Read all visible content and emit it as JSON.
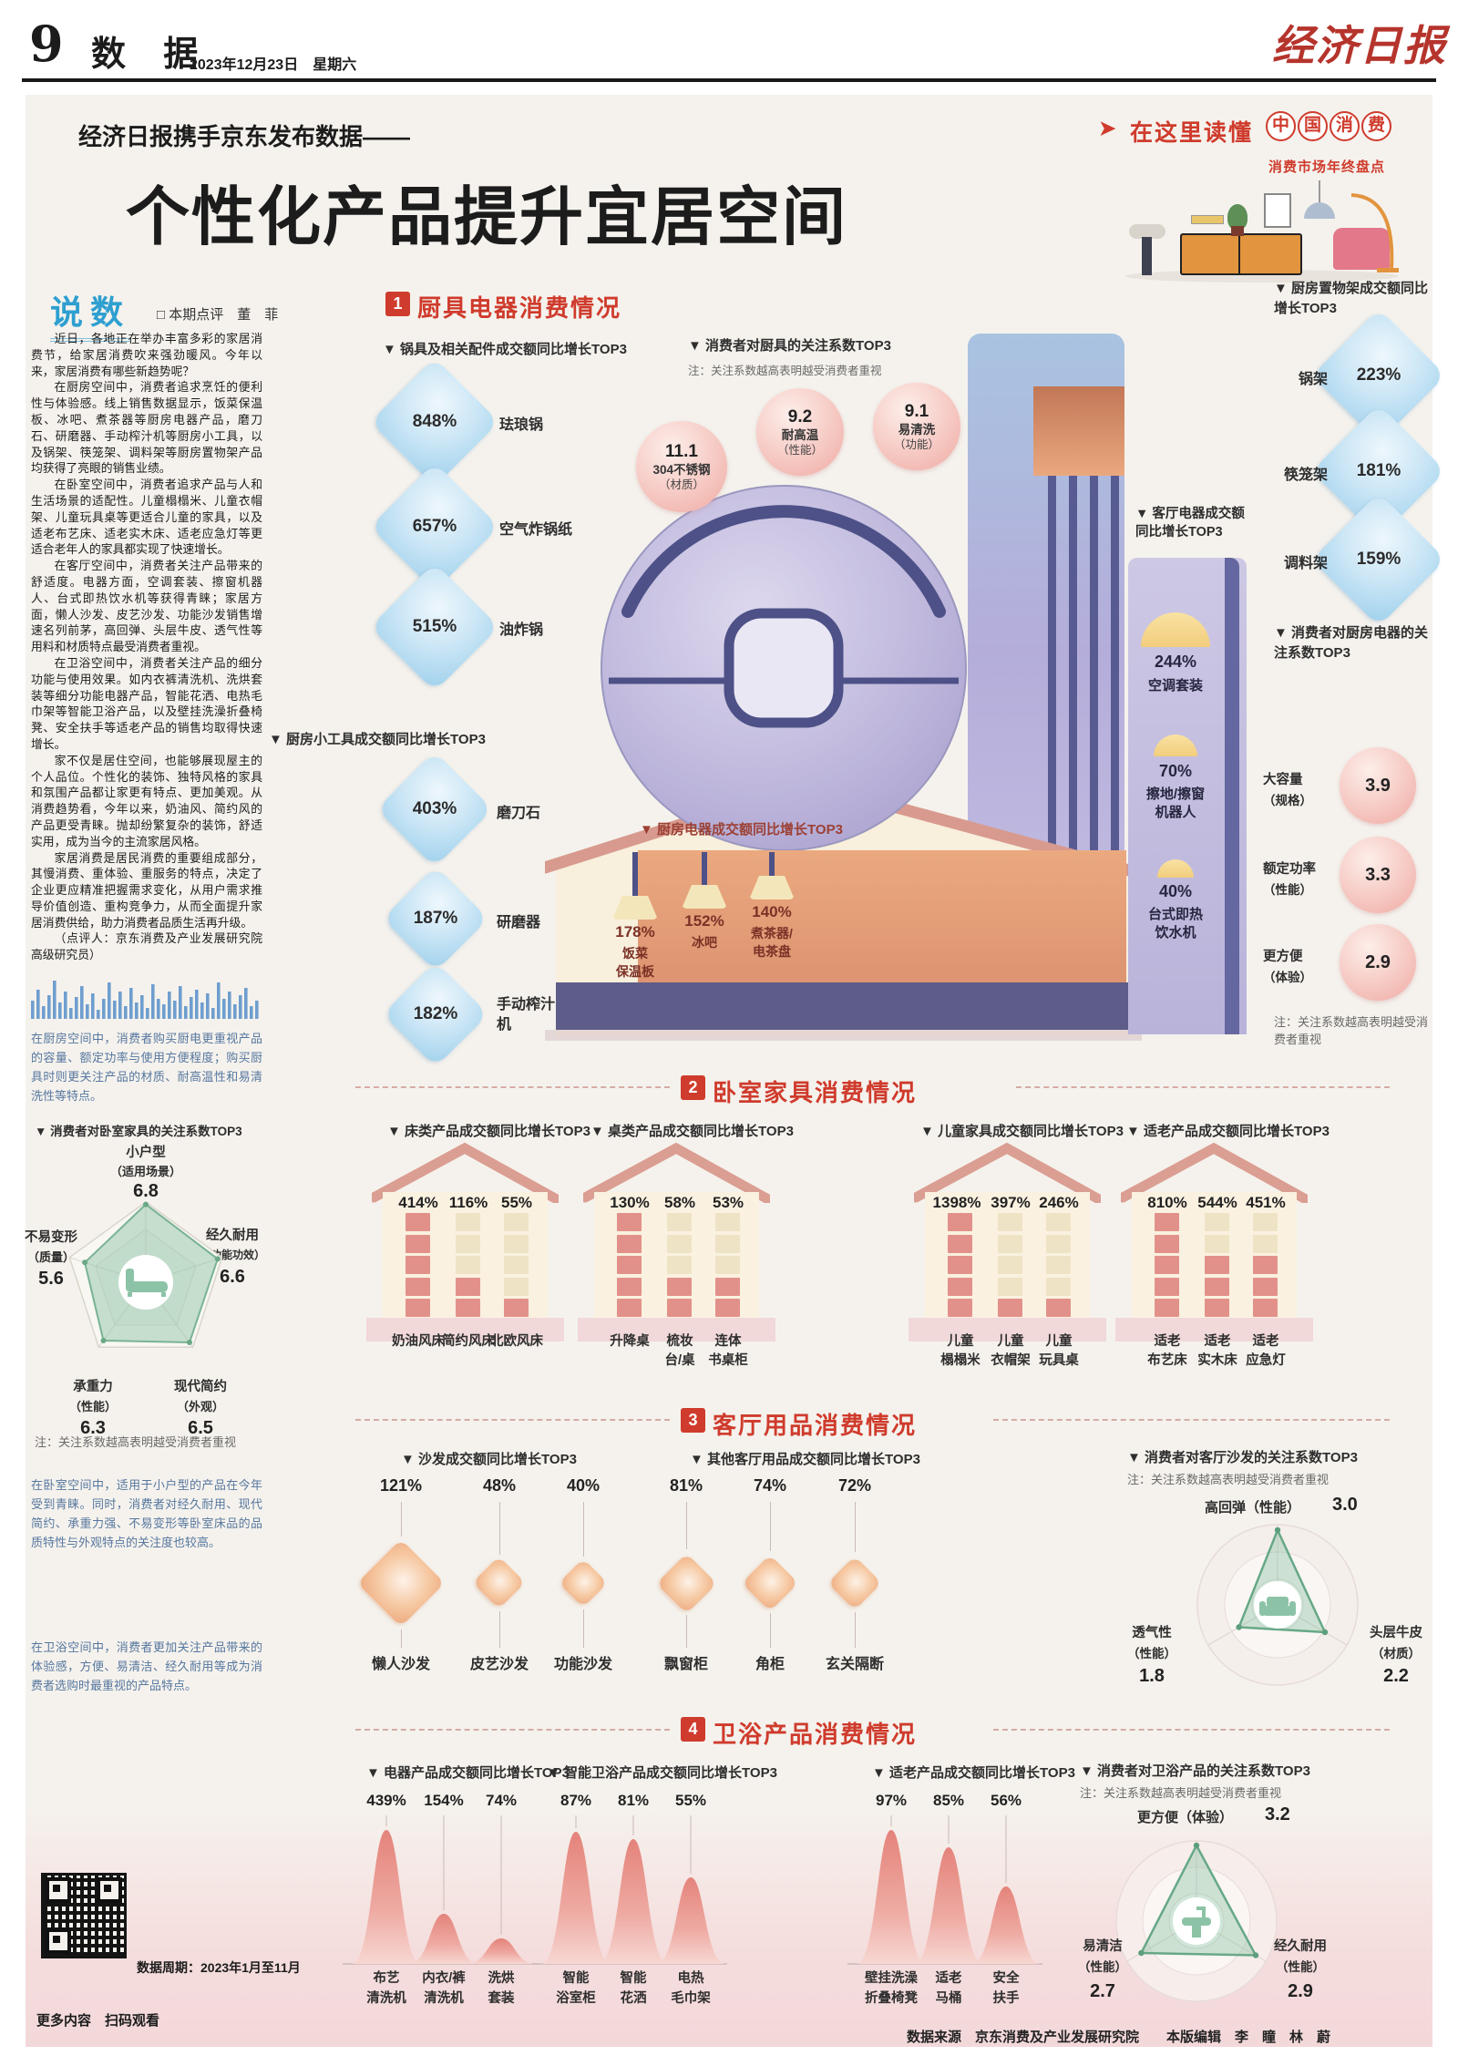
{
  "page": {
    "number": "9",
    "section": "数 据",
    "date": "2023年12月23日　星期六",
    "masthead": "经济日报",
    "kicker": "经济日报携手京东发布数据——",
    "headline": "个性化产品提升宜居空间",
    "badge_arrow": "➤",
    "badge": "在这里读懂",
    "badge_circles": [
      "中",
      "国",
      "消",
      "费"
    ],
    "badge_sub": "消费市场年终盘点",
    "footer": "数据来源　京东消费及产业发展研究院　　本版编辑　李　瞳　林　蔚"
  },
  "commentary": {
    "title": "说数",
    "byline": "□ 本期点评　董　菲",
    "paragraphs": [
      "近日，各地正在举办丰富多彩的家居消费节，给家居消费吹来强劲暖风。今年以来，家居消费有哪些新趋势呢？",
      "在厨房空间中，消费者追求烹饪的便利性与体验感。线上销售数据显示，饭菜保温板、冰吧、煮茶器等厨房电器产品，磨刀石、研磨器、手动榨汁机等厨房小工具，以及锅架、筷笼架、调料架等厨房置物架产品均获得了亮眼的销售业绩。",
      "在卧室空间中，消费者追求产品与人和生活场景的适配性。儿童榻榻米、儿童衣帽架、儿童玩具桌等更适合儿童的家具，以及适老布艺床、适老实木床、适老应急灯等更适合老年人的家具都实现了快速增长。",
      "在客厅空间中，消费者关注产品带来的舒适度。电器方面，空调套装、擦窗机器人、台式即热饮水机等获得青睐；家居方面，懒人沙发、皮艺沙发、功能沙发销售增速名列前茅，高回弹、头层牛皮、透气性等用料和材质特点最受消费者重视。",
      "在卫浴空间中，消费者关注产品的细分功能与使用效果。如内衣裤清洗机、洗烘套装等细分功能电器产品，智能花洒、电热毛巾架等智能卫浴产品，以及壁挂洗澡折叠椅凳、安全扶手等适老产品的销售均取得快速增长。",
      "家不仅是居住空间，也能够展现屋主的个人品位。个性化的装饰、独特风格的家具和氛围产品都让家更有特点、更加美观。从消费趋势看，今年以来，奶油风、简约风的产品更受青睐。抛却纷繁复杂的装饰，舒适实用，成为当今的主流家居风格。",
      "家居消费是居民消费的重要组成部分，其慢消费、重体验、重服务的特点，决定了企业更应精准把握需求变化，从用户需求推导价值创造、重构竞争力，从而全面提升家居消费供给，助力消费者品质生活再升级。",
      "（点评人：京东消费及产业发展研究院高级研究员）"
    ],
    "highlight1": "在厨房空间中，消费者购买厨电更重视产品的容量、额定功率与使用方便程度；购买厨具时则更关注产品的材质、耐高温性和易清洗性等特点。",
    "highlight2": "在卧室空间中，适用于小户型的产品在今年受到青睐。同时，消费者对经久耐用、现代简约、承重力强、不易变形等卧室床品的品质特性与外观特点的关注度也较高。",
    "highlight3": "在卫浴空间中，消费者更加关注产品带来的体验感，方便、易清洁、经久耐用等成为消费者选购时最重视的产品特点。",
    "qr_caption": "更多内容　扫码观看",
    "data_period": "数据周期：2023年1月至11月"
  },
  "s1": {
    "num": "1",
    "title": "厨具电器消费情况",
    "pots": {
      "label": "▼ 锅具及相关配件成交额同比增长TOP3",
      "items": [
        {
          "value": "848%",
          "name": "珐琅锅"
        },
        {
          "value": "657%",
          "name": "空气炸锅纸"
        },
        {
          "value": "515%",
          "name": "油炸锅"
        }
      ]
    },
    "cookware_focus": {
      "label": "▼ 消费者对厨具的关注系数TOP3",
      "note": "注：关注系数越高表明越受消费者重视",
      "items": [
        {
          "value": "11.1",
          "name": "304不锈钢",
          "attr": "（材质）"
        },
        {
          "value": "9.2",
          "name": "耐高温",
          "attr": "（性能）"
        },
        {
          "value": "9.1",
          "name": "易清洗",
          "attr": "（功能）"
        }
      ]
    },
    "tools": {
      "label": "▼ 厨房小工具成交额同比增长TOP3",
      "items": [
        {
          "value": "403%",
          "name": "磨刀石"
        },
        {
          "value": "187%",
          "name": "研磨器"
        },
        {
          "value": "182%",
          "name": "手动榨汁机"
        }
      ]
    },
    "house": {
      "label": "▼ 厨房电器成交额同比增长TOP3",
      "items": [
        {
          "value": "178%",
          "name1": "饭菜",
          "name2": "保温板"
        },
        {
          "value": "152%",
          "name1": "冰吧",
          "name2": ""
        },
        {
          "value": "140%",
          "name1": "煮茶器/",
          "name2": "电茶盘"
        }
      ]
    },
    "living": {
      "label": "▼ 客厅电器成交额同比增长TOP3",
      "items": [
        {
          "value": "244%",
          "name1": "空调套装",
          "name2": ""
        },
        {
          "value": "70%",
          "name1": "擦地/擦窗",
          "name2": "机器人"
        },
        {
          "value": "40%",
          "name1": "台式即热",
          "name2": "饮水机"
        }
      ]
    },
    "racks": {
      "label": "▼ 厨房置物架成交额同比增长TOP3",
      "items": [
        {
          "name": "锅架",
          "value": "223%"
        },
        {
          "name": "筷笼架",
          "value": "181%"
        },
        {
          "name": "调料架",
          "value": "159%"
        }
      ]
    },
    "kitchen_focus": {
      "label": "▼ 消费者对厨房电器的关注系数TOP3",
      "note": "注：关注系数越高表明越受消费者重视",
      "items": [
        {
          "name": "大容量",
          "attr": "（规格）",
          "value": "3.9"
        },
        {
          "name": "额定功率",
          "attr": "（性能）",
          "value": "3.3"
        },
        {
          "name": "更方便",
          "attr": "（体验）",
          "value": "2.9"
        }
      ]
    }
  },
  "s2": {
    "num": "2",
    "title": "卧室家具消费情况",
    "groups": [
      {
        "label": "▼ 床类产品成交额同比增长TOP3",
        "items": [
          {
            "value": "414%",
            "name1": "奶油风床",
            "name2": "",
            "fill": "5"
          },
          {
            "value": "116%",
            "name1": "简约风床",
            "name2": "",
            "fill": "2"
          },
          {
            "value": "55%",
            "name1": "北欧风床",
            "name2": "",
            "fill": "1"
          }
        ]
      },
      {
        "label": "▼ 桌类产品成交额同比增长TOP3",
        "items": [
          {
            "value": "130%",
            "name1": "升降桌",
            "name2": "",
            "fill": "5"
          },
          {
            "value": "58%",
            "name1": "梳妆",
            "name2": "台/桌",
            "fill": "2"
          },
          {
            "value": "53%",
            "name1": "连体",
            "name2": "书桌柜",
            "fill": "2"
          }
        ]
      },
      {
        "label": "▼ 儿童家具成交额同比增长TOP3",
        "items": [
          {
            "value": "1398%",
            "name1": "儿童",
            "name2": "榻榻米",
            "fill": "5"
          },
          {
            "value": "397%",
            "name1": "儿童",
            "name2": "衣帽架",
            "fill": "1"
          },
          {
            "value": "246%",
            "name1": "儿童",
            "name2": "玩具桌",
            "fill": "1"
          }
        ]
      },
      {
        "label": "▼ 适老产品成交额同比增长TOP3",
        "items": [
          {
            "value": "810%",
            "name1": "适老",
            "name2": "布艺床",
            "fill": "5"
          },
          {
            "value": "544%",
            "name1": "适老",
            "name2": "实木床",
            "fill": "3"
          },
          {
            "value": "451%",
            "name1": "适老",
            "name2": "应急灯",
            "fill": "3"
          }
        ]
      }
    ],
    "bedroom_focus": {
      "label": "▼ 消费者对卧室家具的关注系数TOP3",
      "note": "注：关注系数越高表明越受消费者重视",
      "axes": [
        {
          "name": "小户型",
          "attr": "（适用场景）",
          "value": "6.8"
        },
        {
          "name": "经久耐用",
          "attr": "（功能功效）",
          "value": "6.6"
        },
        {
          "name": "现代简约",
          "attr": "（外观）",
          "value": "6.5"
        },
        {
          "name": "承重力",
          "attr": "（性能）",
          "value": "6.3"
        },
        {
          "name": "不易变形",
          "attr": "（质量）",
          "value": "5.6"
        }
      ]
    }
  },
  "s3": {
    "num": "3",
    "title": "客厅用品消费情况",
    "sofa": {
      "label": "▼ 沙发成交额同比增长TOP3",
      "items": [
        {
          "value": "121%",
          "name": "懒人沙发"
        },
        {
          "value": "48%",
          "name": "皮艺沙发"
        },
        {
          "value": "40%",
          "name": "功能沙发"
        }
      ]
    },
    "other": {
      "label": "▼ 其他客厅用品成交额同比增长TOP3",
      "items": [
        {
          "value": "81%",
          "name": "飘窗柜"
        },
        {
          "value": "74%",
          "name": "角柜"
        },
        {
          "value": "72%",
          "name": "玄关隔断"
        }
      ]
    },
    "sofa_focus": {
      "label": "▼ 消费者对客厅沙发的关注系数TOP3",
      "note": "注：关注系数越高表明越受消费者重视",
      "axes": [
        {
          "name": "高回弹（性能）",
          "value": "3.0"
        },
        {
          "name": "头层牛皮",
          "attr": "（材质）",
          "value": "2.2"
        },
        {
          "name": "透气性",
          "attr": "（性能）",
          "value": "1.8"
        }
      ]
    }
  },
  "s4": {
    "num": "4",
    "title": "卫浴产品消费情况",
    "electric": {
      "label": "▼ 电器产品成交额同比增长TOP3",
      "items": [
        {
          "value": "439%",
          "name1": "布艺",
          "name2": "清洗机"
        },
        {
          "value": "154%",
          "name1": "内衣/裤",
          "name2": "清洗机"
        },
        {
          "value": "74%",
          "name1": "洗烘",
          "name2": "套装"
        }
      ]
    },
    "smart": {
      "label": "▼ 智能卫浴产品成交额同比增长TOP3",
      "items": [
        {
          "value": "87%",
          "name1": "智能",
          "name2": "浴室柜"
        },
        {
          "value": "81%",
          "name1": "智能",
          "name2": "花洒"
        },
        {
          "value": "55%",
          "name1": "电热",
          "name2": "毛巾架"
        }
      ]
    },
    "elder": {
      "label": "▼ 适老产品成交额同比增长TOP3",
      "items": [
        {
          "value": "97%",
          "name1": "壁挂洗澡",
          "name2": "折叠椅凳"
        },
        {
          "value": "85%",
          "name1": "适老",
          "name2": "马桶"
        },
        {
          "value": "56%",
          "name1": "安全",
          "name2": "扶手"
        }
      ]
    },
    "bath_focus": {
      "label": "▼ 消费者对卫浴产品的关注系数TOP3",
      "note": "注：关注系数越高表明越受消费者重视",
      "axes": [
        {
          "name": "更方便（体验）",
          "value": "3.2"
        },
        {
          "name": "经久耐用",
          "attr": "（性能）",
          "value": "2.9"
        },
        {
          "name": "易清洁",
          "attr": "（性能）",
          "value": "2.7"
        }
      ]
    }
  },
  "chart_data": [
    {
      "type": "bar",
      "title": "锅具及相关配件成交额同比增长TOP3",
      "categories": [
        "珐琅锅",
        "空气炸锅纸",
        "油炸锅"
      ],
      "values": [
        848,
        657,
        515
      ],
      "unit": "%"
    },
    {
      "type": "bar",
      "title": "消费者对厨具的关注系数TOP3",
      "categories": [
        "304不锈钢（材质）",
        "耐高温（性能）",
        "易清洗（功能）"
      ],
      "values": [
        11.1,
        9.2,
        9.1
      ]
    },
    {
      "type": "bar",
      "title": "厨房小工具成交额同比增长TOP3",
      "categories": [
        "磨刀石",
        "研磨器",
        "手动榨汁机"
      ],
      "values": [
        403,
        187,
        182
      ],
      "unit": "%"
    },
    {
      "type": "bar",
      "title": "厨房电器成交额同比增长TOP3",
      "categories": [
        "饭菜保温板",
        "冰吧",
        "煮茶器/电茶盘"
      ],
      "values": [
        178,
        152,
        140
      ],
      "unit": "%"
    },
    {
      "type": "bar",
      "title": "客厅电器成交额同比增长TOP3",
      "categories": [
        "空调套装",
        "擦地/擦窗机器人",
        "台式即热饮水机"
      ],
      "values": [
        244,
        70,
        40
      ],
      "unit": "%"
    },
    {
      "type": "bar",
      "title": "厨房置物架成交额同比增长TOP3",
      "categories": [
        "锅架",
        "筷笼架",
        "调料架"
      ],
      "values": [
        223,
        181,
        159
      ],
      "unit": "%"
    },
    {
      "type": "bar",
      "title": "消费者对厨房电器的关注系数TOP3",
      "categories": [
        "大容量（规格）",
        "额定功率（性能）",
        "更方便（体验）"
      ],
      "values": [
        3.9,
        3.3,
        2.9
      ]
    },
    {
      "type": "bar",
      "title": "床类产品成交额同比增长TOP3",
      "categories": [
        "奶油风床",
        "简约风床",
        "北欧风床"
      ],
      "values": [
        414,
        116,
        55
      ],
      "unit": "%"
    },
    {
      "type": "bar",
      "title": "桌类产品成交额同比增长TOP3",
      "categories": [
        "升降桌",
        "梳妆台/桌",
        "连体书桌柜"
      ],
      "values": [
        130,
        58,
        53
      ],
      "unit": "%"
    },
    {
      "type": "bar",
      "title": "儿童家具成交额同比增长TOP3",
      "categories": [
        "儿童榻榻米",
        "儿童衣帽架",
        "儿童玩具桌"
      ],
      "values": [
        1398,
        397,
        246
      ],
      "unit": "%"
    },
    {
      "type": "bar",
      "title": "适老产品成交额同比增长TOP3（卧室）",
      "categories": [
        "适老布艺床",
        "适老实木床",
        "适老应急灯"
      ],
      "values": [
        810,
        544,
        451
      ],
      "unit": "%"
    },
    {
      "type": "radar",
      "title": "消费者对卧室家具的关注系数TOP3",
      "categories": [
        "小户型（适用场景）",
        "经久耐用（功能功效）",
        "现代简约（外观）",
        "承重力（性能）",
        "不易变形（质量）"
      ],
      "values": [
        6.8,
        6.6,
        6.5,
        6.3,
        5.6
      ]
    },
    {
      "type": "bar",
      "title": "沙发成交额同比增长TOP3",
      "categories": [
        "懒人沙发",
        "皮艺沙发",
        "功能沙发"
      ],
      "values": [
        121,
        48,
        40
      ],
      "unit": "%"
    },
    {
      "type": "bar",
      "title": "其他客厅用品成交额同比增长TOP3",
      "categories": [
        "飘窗柜",
        "角柜",
        "玄关隔断"
      ],
      "values": [
        81,
        74,
        72
      ],
      "unit": "%"
    },
    {
      "type": "radar",
      "title": "消费者对客厅沙发的关注系数TOP3",
      "categories": [
        "高回弹（性能）",
        "头层牛皮（材质）",
        "透气性（性能）"
      ],
      "values": [
        3.0,
        2.2,
        1.8
      ]
    },
    {
      "type": "bar",
      "title": "电器产品成交额同比增长TOP3（卫浴）",
      "categories": [
        "布艺清洗机",
        "内衣/裤清洗机",
        "洗烘套装"
      ],
      "values": [
        439,
        154,
        74
      ],
      "unit": "%"
    },
    {
      "type": "bar",
      "title": "智能卫浴产品成交额同比增长TOP3",
      "categories": [
        "智能浴室柜",
        "智能花洒",
        "电热毛巾架"
      ],
      "values": [
        87,
        81,
        55
      ],
      "unit": "%"
    },
    {
      "type": "bar",
      "title": "适老产品成交额同比增长TOP3（卫浴）",
      "categories": [
        "壁挂洗澡折叠椅凳",
        "适老马桶",
        "安全扶手"
      ],
      "values": [
        97,
        85,
        56
      ],
      "unit": "%"
    },
    {
      "type": "radar",
      "title": "消费者对卫浴产品的关注系数TOP3",
      "categories": [
        "更方便（体验）",
        "经久耐用（性能）",
        "易清洁（性能）"
      ],
      "values": [
        3.2,
        2.9,
        2.7
      ]
    }
  ]
}
